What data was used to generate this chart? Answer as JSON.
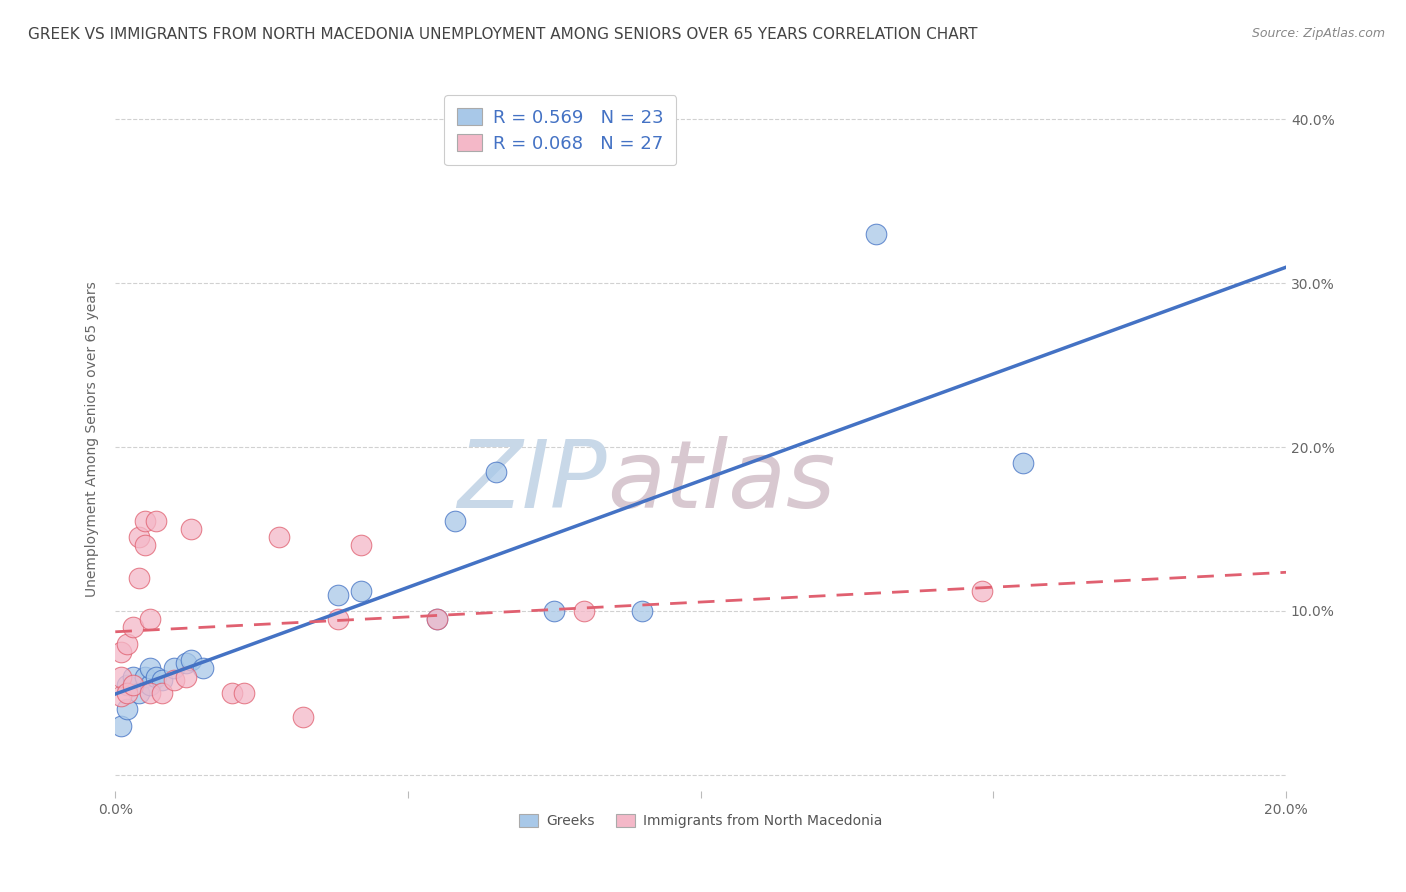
{
  "title": "GREEK VS IMMIGRANTS FROM NORTH MACEDONIA UNEMPLOYMENT AMONG SENIORS OVER 65 YEARS CORRELATION CHART",
  "source": "Source: ZipAtlas.com",
  "ylabel": "Unemployment Among Seniors over 65 years",
  "xlim": [
    0.0,
    0.2
  ],
  "ylim": [
    -0.01,
    0.42
  ],
  "legend_label1": "Greeks",
  "legend_label2": "Immigrants from North Macedonia",
  "R1": 0.569,
  "N1": 23,
  "R2": 0.068,
  "N2": 27,
  "color_blue": "#A8C8E8",
  "color_pink": "#F4B8C8",
  "line_blue": "#4472C4",
  "line_pink": "#E06070",
  "watermark_zip": "ZIP",
  "watermark_atlas": "atlas",
  "greeks_x": [
    0.001,
    0.002,
    0.002,
    0.003,
    0.004,
    0.005,
    0.006,
    0.006,
    0.007,
    0.008,
    0.01,
    0.012,
    0.013,
    0.015,
    0.038,
    0.042,
    0.055,
    0.058,
    0.065,
    0.075,
    0.09,
    0.13,
    0.155
  ],
  "greeks_y": [
    0.03,
    0.04,
    0.055,
    0.06,
    0.05,
    0.06,
    0.055,
    0.065,
    0.06,
    0.058,
    0.065,
    0.068,
    0.07,
    0.065,
    0.11,
    0.112,
    0.095,
    0.155,
    0.185,
    0.1,
    0.1,
    0.33,
    0.19
  ],
  "nmacedonia_x": [
    0.001,
    0.001,
    0.001,
    0.002,
    0.002,
    0.003,
    0.003,
    0.004,
    0.004,
    0.005,
    0.005,
    0.006,
    0.006,
    0.007,
    0.008,
    0.01,
    0.012,
    0.013,
    0.02,
    0.022,
    0.028,
    0.032,
    0.038,
    0.042,
    0.055,
    0.08,
    0.148
  ],
  "nmacedonia_y": [
    0.048,
    0.06,
    0.075,
    0.05,
    0.08,
    0.055,
    0.09,
    0.12,
    0.145,
    0.14,
    0.155,
    0.05,
    0.095,
    0.155,
    0.05,
    0.058,
    0.06,
    0.15,
    0.05,
    0.05,
    0.145,
    0.035,
    0.095,
    0.14,
    0.095,
    0.1,
    0.112
  ],
  "background_color": "#FFFFFF",
  "grid_color": "#CCCCCC",
  "title_fontsize": 11,
  "source_fontsize": 9,
  "watermark_color_zip": "#C8D8E8",
  "watermark_color_atlas": "#D8C8D0",
  "watermark_fontsize": 68
}
